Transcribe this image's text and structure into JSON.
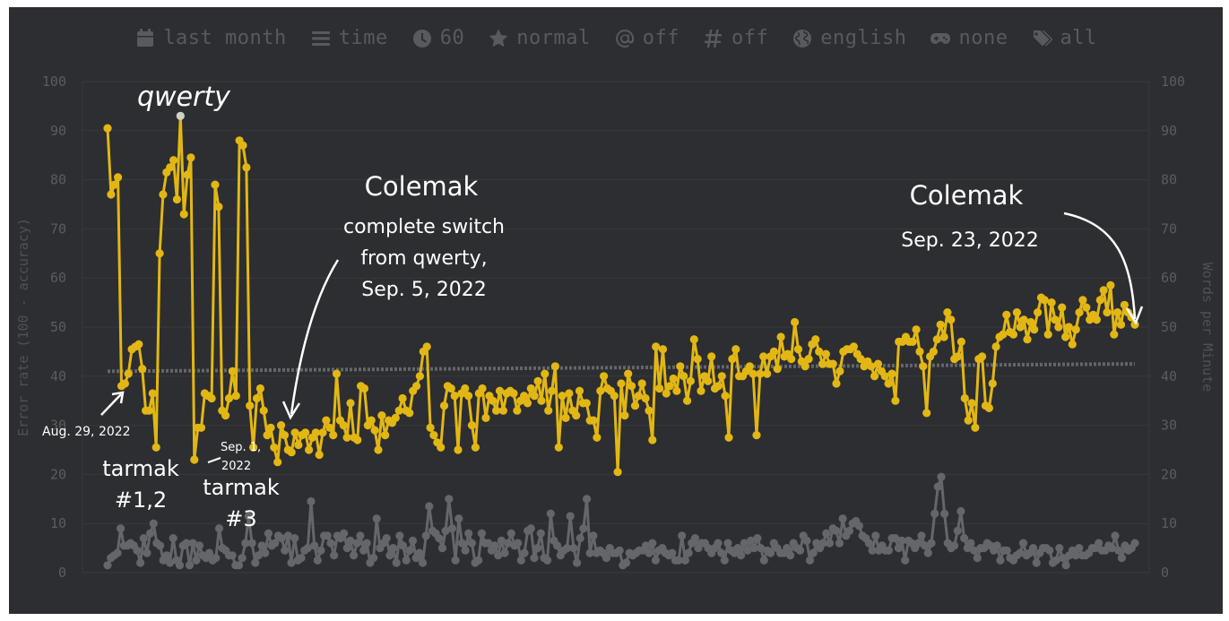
{
  "filters": [
    {
      "icon": "calendar-icon",
      "label": "last month"
    },
    {
      "icon": "list-icon",
      "label": "time"
    },
    {
      "icon": "clock-icon",
      "label": "60"
    },
    {
      "icon": "star-icon",
      "label": "normal"
    },
    {
      "icon": "at-icon",
      "label": "off"
    },
    {
      "icon": "hash-icon",
      "label": "off"
    },
    {
      "icon": "globe-icon",
      "label": "english"
    },
    {
      "icon": "gamepad-icon",
      "label": "none"
    },
    {
      "icon": "tag-icon",
      "label": "all"
    }
  ],
  "annotations": {
    "qwerty": "qwerty",
    "colemak1_title": "Colemak",
    "colemak1_line1": "complete switch",
    "colemak1_line2": "from qwerty,",
    "colemak1_line3": "Sep. 5, 2022",
    "colemak2_title": "Colemak",
    "colemak2_date": "Sep. 23, 2022",
    "aug29": "Aug. 29, 2022",
    "sep1_line1": "Sep. 1,",
    "sep1_line2": "2022",
    "tarmak12_line1": "tarmak",
    "tarmak12_line2": "#1,2",
    "tarmak3_line1": "tarmak",
    "tarmak3_line2": "#3"
  },
  "colors": {
    "background": "#2d2e31",
    "wpm": "#e2b714",
    "error": "#646669",
    "average": "#646669",
    "highlight": "#d1d0c5"
  },
  "chart_data": {
    "type": "line",
    "ylim_left": [
      0,
      100
    ],
    "ylim_right": [
      0,
      100
    ],
    "yticks": [
      0,
      10,
      20,
      30,
      40,
      50,
      60,
      70,
      80,
      90,
      100
    ],
    "ylabel_left": "Error rate (100 - accuracy)",
    "ylabel_right": "Words per Minute",
    "grid": true,
    "series": [
      {
        "axis": "right",
        "values": [
          90.5,
          77,
          79,
          80.5,
          38,
          38.5,
          40.5,
          45.5,
          46,
          46.5,
          41.5,
          33,
          33,
          36.5,
          25.5,
          65,
          77,
          81.5,
          82.5,
          84,
          76,
          93,
          73,
          81,
          84.5,
          23,
          29.5,
          29.5,
          36.5,
          36,
          35.5,
          79,
          74.5,
          33,
          32,
          35.5,
          41,
          36,
          88,
          87,
          82.5,
          34,
          25.5,
          35.5,
          37.5,
          33,
          28,
          29.5,
          25.5,
          22.5,
          30,
          28,
          25,
          24.5,
          28.5,
          26,
          28,
          28.5,
          25,
          27.5,
          28.5,
          24,
          28.5,
          31,
          29.5,
          28,
          40.5,
          31,
          30,
          27.5,
          34.5,
          27.5,
          27,
          38,
          37.5,
          30,
          31,
          29,
          25,
          32,
          28,
          31,
          30.5,
          31.5,
          33,
          35.5,
          33,
          32.5,
          37,
          38,
          40,
          45,
          46,
          29.5,
          28,
          26.5,
          25.5,
          34,
          38,
          37.5,
          36,
          25,
          36.5,
          37.5,
          36,
          30,
          25.5,
          36.5,
          37.5,
          31.5,
          36,
          35,
          33,
          37,
          33,
          36.5,
          37,
          36.5,
          33,
          35,
          36,
          34.5,
          37.5,
          36,
          39,
          35,
          40.5,
          33,
          37,
          42,
          25.5,
          36,
          31.5,
          36.5,
          33,
          32,
          37,
          34.5,
          34.5,
          31,
          31,
          27.5,
          37,
          40,
          37.5,
          37,
          36,
          20.5,
          38.5,
          32,
          40.5,
          38,
          34,
          36,
          38.5,
          35.5,
          33,
          27,
          46,
          37.5,
          45.5,
          36.5,
          38,
          39.5,
          37,
          42,
          40,
          35,
          39,
          47.5,
          43.5,
          37,
          40,
          39,
          44,
          37.5,
          38,
          40,
          36,
          27.5,
          43.5,
          45.5,
          40,
          40,
          41,
          42,
          40.5,
          28,
          40.5,
          44,
          40.5,
          44,
          45,
          41.5,
          48,
          44,
          44.5,
          43.5,
          51,
          45.5,
          43,
          42,
          43.5,
          46.5,
          47.5,
          45,
          42.5,
          44.5,
          42.5,
          42.5,
          38.5,
          41,
          45,
          45.5,
          45.5,
          46,
          44.5,
          43.5,
          42,
          43,
          42,
          40,
          42.5,
          41,
          40,
          38.5,
          40.5,
          35,
          47,
          47,
          48,
          47,
          47,
          49.5,
          45,
          42,
          32.5,
          44,
          45,
          47.5,
          50.5,
          48,
          53,
          51.5,
          43.5,
          44,
          47,
          35.5,
          31,
          34.5,
          29.5,
          43.5,
          44,
          34,
          33.5,
          38.5,
          46,
          48,
          48.5,
          52.5,
          49,
          48.5,
          53,
          50,
          51.5,
          47.5,
          51,
          49.5,
          53,
          56,
          55.5,
          48.5,
          55,
          51.5,
          50,
          54,
          48,
          50,
          46.5,
          49.5,
          53,
          55.5,
          54,
          51.5,
          52.5,
          51.5,
          55.5,
          57.5,
          53,
          58.5,
          48.5,
          53,
          50.5,
          54.5,
          53,
          52,
          50.5
        ]
      },
      {
        "axis": "left",
        "values": [
          1.5,
          3,
          3.5,
          4,
          9,
          5.5,
          5.5,
          6,
          5.5,
          4.5,
          2,
          7,
          4,
          8,
          10,
          6,
          5.5,
          2.5,
          3.5,
          2,
          7,
          2.5,
          1.5,
          5.5,
          6,
          1.5,
          6,
          2.5,
          5.5,
          3.5,
          3,
          4,
          2.5,
          3,
          9,
          5,
          4.5,
          3.5,
          3.5,
          1.5,
          1.5,
          3,
          6,
          11.5,
          6,
          2,
          3.5,
          5.5,
          4,
          8,
          5.5,
          6,
          7.5,
          7,
          4.5,
          7.5,
          2,
          7,
          2.5,
          3,
          4.5,
          5,
          14.5,
          5.5,
          2.5,
          4.5,
          7.5,
          7.5,
          6,
          3.5,
          7.5,
          7,
          8,
          5,
          6.5,
          3.5,
          6,
          7.5,
          4.5,
          6,
          2,
          3,
          11,
          5,
          6,
          7,
          3.5,
          5,
          2,
          7.5,
          5.5,
          2.5,
          4.5,
          6.5,
          3,
          4,
          2,
          7.5,
          13.5,
          8.5,
          8,
          7,
          5,
          8.5,
          15,
          9,
          2.5,
          11,
          6,
          4.5,
          8,
          6,
          2,
          2.5,
          8,
          6,
          6,
          4.5,
          5.5,
          3.5,
          6.5,
          4,
          6,
          8,
          5.5,
          6,
          2.5,
          4,
          8.5,
          9,
          3,
          5,
          8,
          3,
          2.5,
          12,
          6.5,
          5.5,
          3.5,
          4.5,
          5,
          11.5,
          5,
          2,
          7,
          9,
          15,
          4,
          7.5,
          4,
          4.5,
          4,
          3,
          5,
          4,
          4,
          4.5,
          1.5,
          2,
          4,
          3.5,
          4,
          4.5,
          4.5,
          5.5,
          4,
          6,
          2.5,
          4.5,
          5,
          4,
          3.5,
          4,
          2.5,
          2.5,
          7.5,
          2.5,
          4,
          6,
          7,
          5,
          6,
          6,
          5,
          4,
          5,
          6,
          4,
          2.5,
          6,
          4.5,
          4,
          5,
          3.5,
          6,
          4.5,
          6.5,
          5,
          7,
          5,
          2.5,
          4.5,
          4,
          6,
          5,
          4,
          4,
          5,
          3.5,
          6,
          5,
          4.5,
          7.5,
          6.5,
          2.5,
          4,
          6,
          5,
          6,
          8,
          6,
          9,
          8.5,
          6,
          11,
          7.5,
          8.5,
          10,
          10.5,
          9.5,
          7.5,
          7,
          6,
          4.5,
          7.5,
          4.5,
          5.5,
          4.5,
          4.5,
          7,
          7,
          5,
          6.5,
          2.5,
          6.5,
          6,
          5,
          6,
          7.5,
          5.5,
          4,
          6,
          12,
          17.5,
          19.5,
          12,
          6,
          5,
          5.5,
          8.5,
          12.5,
          7,
          5,
          6,
          4.5,
          3,
          5,
          5,
          6,
          5.5,
          4.5,
          5.5,
          2.5,
          4.5,
          4.5,
          3,
          2.5,
          3.5,
          4,
          6,
          3.5,
          4,
          5,
          2,
          4,
          5,
          5,
          4.5,
          2,
          2.5,
          5,
          3,
          1.5,
          3.5,
          4.5,
          3.5,
          5,
          3.5,
          3.5,
          4,
          5,
          5,
          6,
          4.5,
          4.5,
          5.5,
          5,
          7.5,
          4.5,
          3,
          5.5,
          4.5,
          5,
          6
        ]
      },
      {
        "axis": "right",
        "values": [
          41,
          42.5
        ]
      }
    ]
  }
}
